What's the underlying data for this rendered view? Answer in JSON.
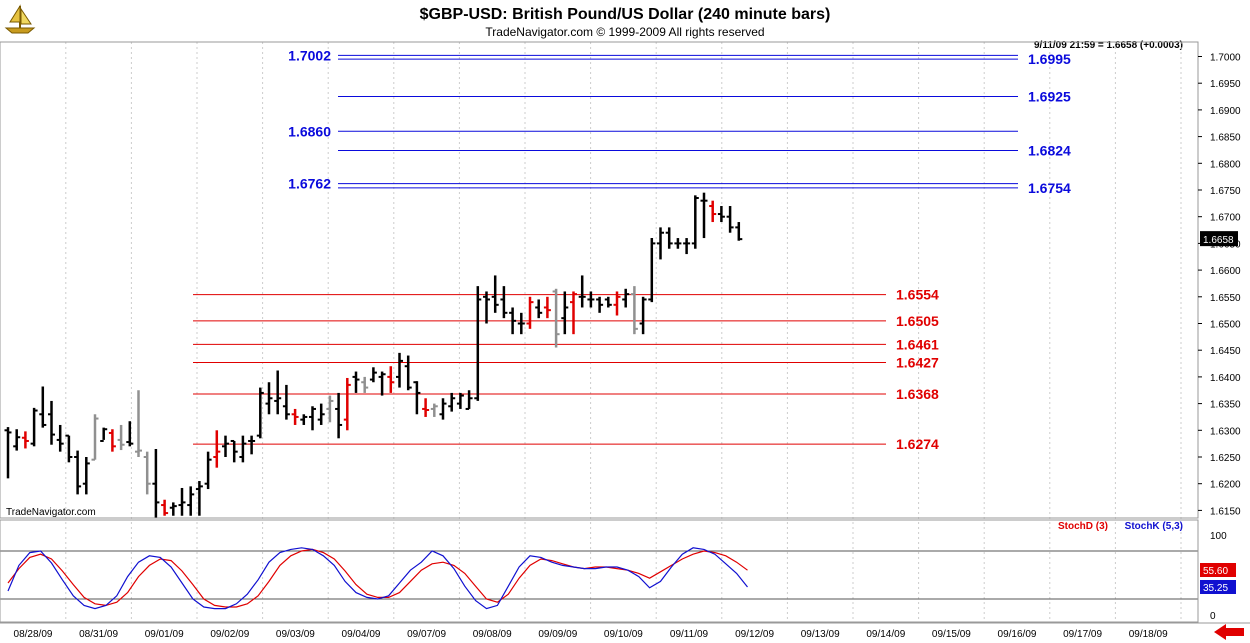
{
  "header": {
    "title": "$GBP-USD:  British Pound/US Dollar  (240 minute bars)",
    "subtitle": "TradeNavigator.com © 1999-2009 All rights reserved",
    "quote": "9/11/09 21:59 = 1.6658 (+0.0003)",
    "watermark": "TradeNavigator.com"
  },
  "colors": {
    "blue_level": "#0a0adc",
    "red_level": "#e00000",
    "bar_black": "#000000",
    "bar_gray": "#909090",
    "bar_red": "#e00000"
  },
  "chart_data": [
    {
      "type": "ohlc",
      "ylim": [
        1.613,
        1.703
      ],
      "yticks": [
        "1.6150",
        "1.6200",
        "1.6250",
        "1.6300",
        "1.6350",
        "1.6400",
        "1.6450",
        "1.6500",
        "1.6550",
        "1.6600",
        "1.6650",
        "1.6700",
        "1.6750",
        "1.6800",
        "1.6850",
        "1.6900",
        "1.6950",
        "1.7000"
      ],
      "xticks": [
        "08/28/09",
        "08/31/09",
        "09/01/09",
        "09/02/09",
        "09/03/09",
        "09/04/09",
        "09/07/09",
        "09/08/09",
        "09/09/09",
        "09/10/09",
        "09/11/09",
        "09/12/09",
        "09/13/09",
        "09/14/09",
        "09/15/09",
        "09/16/09",
        "09/17/09",
        "09/18/09"
      ],
      "last_price": "1.6658",
      "resistance_levels": [
        {
          "label": "1.7002",
          "value": 1.7002
        },
        {
          "label": "1.6995",
          "value": 1.6995
        },
        {
          "label": "1.6925",
          "value": 1.6925
        },
        {
          "label": "1.6860",
          "value": 1.686
        },
        {
          "label": "1.6824",
          "value": 1.6824
        },
        {
          "label": "1.6762",
          "value": 1.6762
        },
        {
          "label": "1.6754",
          "value": 1.6754
        }
      ],
      "support_levels": [
        {
          "label": "1.6554",
          "value": 1.6554
        },
        {
          "label": "1.6505",
          "value": 1.6505
        },
        {
          "label": "1.6461",
          "value": 1.6461
        },
        {
          "label": "1.6427",
          "value": 1.6427
        },
        {
          "label": "1.6368",
          "value": 1.6368
        },
        {
          "label": "1.6274",
          "value": 1.6274
        }
      ],
      "bars_ohlc": [
        [
          1.63,
          1.6306,
          1.621,
          1.6296
        ],
        [
          1.627,
          1.6302,
          1.6262,
          1.6287
        ],
        [
          1.6286,
          1.6298,
          1.6266,
          1.628
        ],
        [
          1.6275,
          1.6342,
          1.627,
          1.6337
        ],
        [
          1.633,
          1.6382,
          1.6305,
          1.631
        ],
        [
          1.633,
          1.6355,
          1.6273,
          1.6292
        ],
        [
          1.6282,
          1.631,
          1.626,
          1.6275
        ],
        [
          1.629,
          1.629,
          1.624,
          1.625
        ],
        [
          1.625,
          1.6262,
          1.618,
          1.6195
        ],
        [
          1.62,
          1.625,
          1.618,
          1.6238
        ],
        [
          1.6245,
          1.633,
          1.6245,
          1.6322
        ],
        [
          1.628,
          1.6305,
          1.6282,
          1.6302
        ],
        [
          1.6295,
          1.6302,
          1.626,
          1.627
        ],
        [
          1.6282,
          1.631,
          1.6263,
          1.6273
        ],
        [
          1.6278,
          1.6317,
          1.627,
          1.6275
        ],
        [
          1.626,
          1.6375,
          1.625,
          1.6262
        ],
        [
          1.625,
          1.626,
          1.618,
          1.62
        ],
        [
          1.62,
          1.6265,
          1.6135,
          1.6165
        ],
        [
          1.616,
          1.617,
          1.614,
          1.6145
        ],
        [
          1.6155,
          1.6165,
          1.614,
          1.6158
        ],
        [
          1.616,
          1.6192,
          1.614,
          1.6165
        ],
        [
          1.616,
          1.6195,
          1.614,
          1.618
        ],
        [
          1.619,
          1.6205,
          1.614,
          1.6195
        ],
        [
          1.62,
          1.626,
          1.619,
          1.6245
        ],
        [
          1.625,
          1.63,
          1.623,
          1.626
        ],
        [
          1.627,
          1.629,
          1.625,
          1.6275
        ],
        [
          1.628,
          1.628,
          1.624,
          1.626
        ],
        [
          1.625,
          1.629,
          1.624,
          1.6275
        ],
        [
          1.628,
          1.629,
          1.6255,
          1.628
        ],
        [
          1.629,
          1.638,
          1.6285,
          1.637
        ],
        [
          1.635,
          1.639,
          1.633,
          1.636
        ],
        [
          1.6355,
          1.6412,
          1.633,
          1.636
        ],
        [
          1.6345,
          1.6385,
          1.632,
          1.633
        ],
        [
          1.633,
          1.634,
          1.631,
          1.6325
        ],
        [
          1.632,
          1.633,
          1.631,
          1.6325
        ],
        [
          1.6325,
          1.6345,
          1.63,
          1.634
        ],
        [
          1.632,
          1.635,
          1.631,
          1.633
        ],
        [
          1.634,
          1.6365,
          1.6315,
          1.6355
        ],
        [
          1.634,
          1.637,
          1.6285,
          1.631
        ],
        [
          1.632,
          1.6398,
          1.63,
          1.6385
        ],
        [
          1.64,
          1.641,
          1.637,
          1.6395
        ],
        [
          1.639,
          1.64,
          1.637,
          1.638
        ],
        [
          1.6395,
          1.6418,
          1.639,
          1.6408
        ],
        [
          1.64,
          1.641,
          1.6365,
          1.6405
        ],
        [
          1.64,
          1.642,
          1.637,
          1.639
        ],
        [
          1.64,
          1.6445,
          1.638,
          1.643
        ],
        [
          1.642,
          1.644,
          1.6375,
          1.638
        ],
        [
          1.639,
          1.6392,
          1.633,
          1.637
        ],
        [
          1.634,
          1.636,
          1.6325,
          1.6338
        ],
        [
          1.634,
          1.635,
          1.6325,
          1.6345
        ],
        [
          1.633,
          1.636,
          1.632,
          1.635
        ],
        [
          1.6345,
          1.637,
          1.6335,
          1.636
        ],
        [
          1.635,
          1.637,
          1.634,
          1.6365
        ],
        [
          1.634,
          1.6375,
          1.634,
          1.636
        ],
        [
          1.636,
          1.657,
          1.6355,
          1.6545
        ],
        [
          1.655,
          1.656,
          1.65,
          1.6545
        ],
        [
          1.655,
          1.659,
          1.652,
          1.6535
        ],
        [
          1.6545,
          1.657,
          1.651,
          1.652
        ],
        [
          1.652,
          1.653,
          1.648,
          1.6505
        ],
        [
          1.65,
          1.652,
          1.648,
          1.65
        ],
        [
          1.65,
          1.655,
          1.649,
          1.654
        ],
        [
          1.653,
          1.6545,
          1.651,
          1.652
        ],
        [
          1.653,
          1.655,
          1.651,
          1.6525
        ],
        [
          1.656,
          1.6565,
          1.6455,
          1.648
        ],
        [
          1.651,
          1.656,
          1.648,
          1.653
        ],
        [
          1.654,
          1.656,
          1.648,
          1.6555
        ],
        [
          1.655,
          1.659,
          1.653,
          1.655
        ],
        [
          1.6545,
          1.656,
          1.653,
          1.6545
        ],
        [
          1.6545,
          1.655,
          1.652,
          1.6535
        ],
        [
          1.6545,
          1.655,
          1.653,
          1.6535
        ],
        [
          1.6535,
          1.656,
          1.6515,
          1.655
        ],
        [
          1.6545,
          1.6565,
          1.653,
          1.6555
        ],
        [
          1.6555,
          1.657,
          1.648,
          1.649
        ],
        [
          1.65,
          1.655,
          1.648,
          1.6545
        ],
        [
          1.6545,
          1.666,
          1.654,
          1.665
        ],
        [
          1.665,
          1.668,
          1.662,
          1.667
        ],
        [
          1.667,
          1.668,
          1.664,
          1.665
        ],
        [
          1.665,
          1.666,
          1.664,
          1.665
        ],
        [
          1.665,
          1.666,
          1.663,
          1.665
        ],
        [
          1.665,
          1.674,
          1.664,
          1.6735
        ],
        [
          1.673,
          1.6745,
          1.666,
          1.673
        ],
        [
          1.672,
          1.673,
          1.669,
          1.6705
        ],
        [
          1.6705,
          1.672,
          1.669,
          1.67
        ],
        [
          1.67,
          1.672,
          1.667,
          1.668
        ],
        [
          1.668,
          1.669,
          1.6655,
          1.6658
        ]
      ],
      "bar_colors": "kkrkkkkkkkgkrgkggkrkkkkkrkkkkkkkkrkkkgkrkgkkrkkkrgkkkkkkkkkkrkrgkrkkkkrkgkkkkkkkkrkkk"
    },
    {
      "type": "line",
      "ylim": [
        0,
        100
      ],
      "yticks": [
        "0",
        "100"
      ],
      "reference_lines": [
        20,
        80
      ],
      "series": [
        {
          "name": "StochD (3)",
          "color": "#e00000",
          "last": "55.60",
          "values": [
            40,
            58,
            72,
            76,
            70,
            55,
            38,
            22,
            14,
            12,
            16,
            28,
            48,
            62,
            70,
            68,
            55,
            38,
            20,
            12,
            10,
            10,
            14,
            24,
            42,
            62,
            74,
            80,
            82,
            78,
            70,
            55,
            38,
            26,
            22,
            22,
            28,
            42,
            56,
            64,
            66,
            62,
            52,
            36,
            20,
            16,
            26,
            46,
            62,
            70,
            68,
            64,
            60,
            58,
            60,
            60,
            58,
            56,
            52,
            46,
            54,
            62,
            70,
            76,
            80,
            78,
            74,
            66,
            56
          ]
        },
        {
          "name": "StochK (5,3)",
          "color": "#1010d0",
          "last": "35.25",
          "values": [
            30,
            62,
            78,
            80,
            65,
            44,
            24,
            12,
            8,
            12,
            24,
            48,
            66,
            74,
            72,
            60,
            40,
            20,
            10,
            8,
            8,
            14,
            26,
            44,
            66,
            78,
            82,
            84,
            82,
            74,
            62,
            42,
            28,
            22,
            20,
            24,
            40,
            56,
            66,
            80,
            74,
            58,
            36,
            18,
            8,
            12,
            36,
            60,
            74,
            72,
            66,
            62,
            60,
            58,
            58,
            60,
            60,
            56,
            48,
            34,
            42,
            60,
            76,
            84,
            82,
            76,
            64,
            52,
            35
          ]
        }
      ]
    }
  ]
}
